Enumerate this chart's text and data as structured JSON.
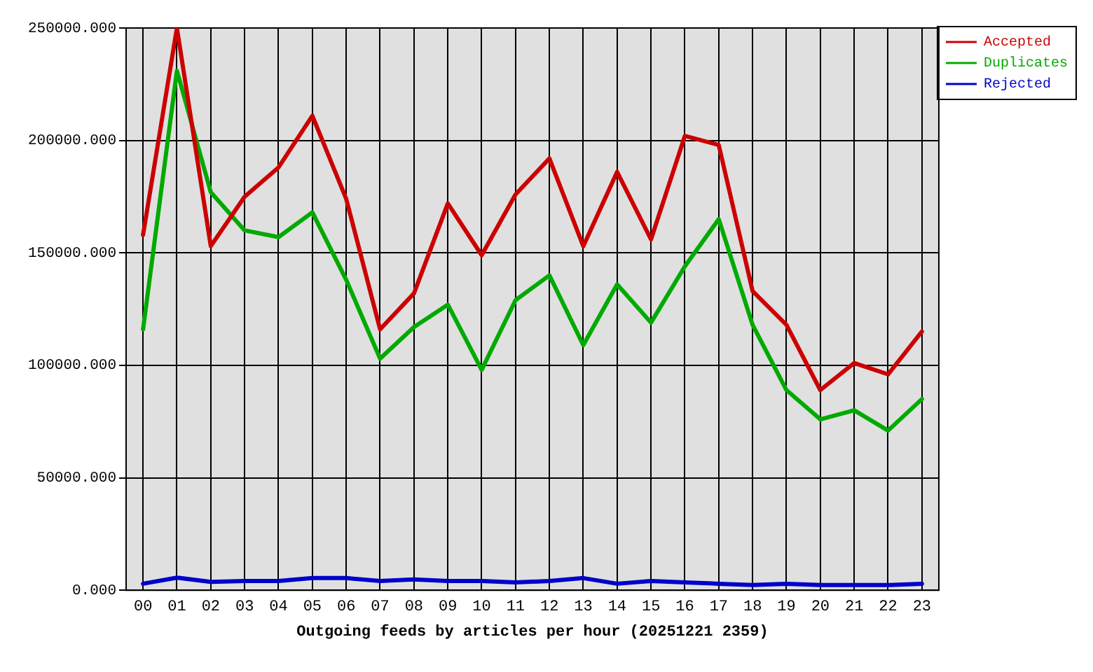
{
  "chart_data": {
    "type": "line",
    "xlabel": "Outgoing feeds by articles per hour (20251221 2359)",
    "categories": [
      "00",
      "01",
      "02",
      "03",
      "04",
      "05",
      "06",
      "07",
      "08",
      "09",
      "10",
      "11",
      "12",
      "13",
      "14",
      "15",
      "16",
      "17",
      "18",
      "19",
      "20",
      "21",
      "22",
      "23"
    ],
    "series": [
      {
        "name": "Accepted",
        "color": "#cc0000",
        "values": [
          158000,
          250000,
          153000,
          175000,
          188000,
          211000,
          174000,
          116000,
          132000,
          172000,
          149000,
          176000,
          192000,
          153000,
          186000,
          156000,
          202000,
          198000,
          133000,
          118000,
          89000,
          101000,
          96000,
          115000
        ]
      },
      {
        "name": "Duplicates",
        "color": "#00aa00",
        "values": [
          116000,
          231000,
          177000,
          160000,
          157000,
          168000,
          138000,
          103000,
          117000,
          127000,
          98000,
          129000,
          140000,
          109000,
          136000,
          119000,
          144000,
          165000,
          118000,
          89000,
          76000,
          80000,
          71000,
          85000
        ]
      },
      {
        "name": "Rejected",
        "color": "#0000cc",
        "values": [
          2900,
          5600,
          3700,
          4100,
          4100,
          5400,
          5400,
          4100,
          4800,
          4100,
          4100,
          3500,
          4100,
          5400,
          2900,
          4100,
          3500,
          2900,
          2300,
          2900,
          2300,
          2300,
          2300,
          2900
        ]
      }
    ],
    "ylim": [
      0,
      250000
    ],
    "yticks": [
      {
        "value": 0,
        "label": "0.000"
      },
      {
        "value": 50000,
        "label": "50000.000"
      },
      {
        "value": 100000,
        "label": "100000.000"
      },
      {
        "value": 150000,
        "label": "150000.000"
      },
      {
        "value": 200000,
        "label": "200000.000"
      },
      {
        "value": 250000,
        "label": "250000.000"
      }
    ],
    "grid": true,
    "legend": "top right"
  }
}
